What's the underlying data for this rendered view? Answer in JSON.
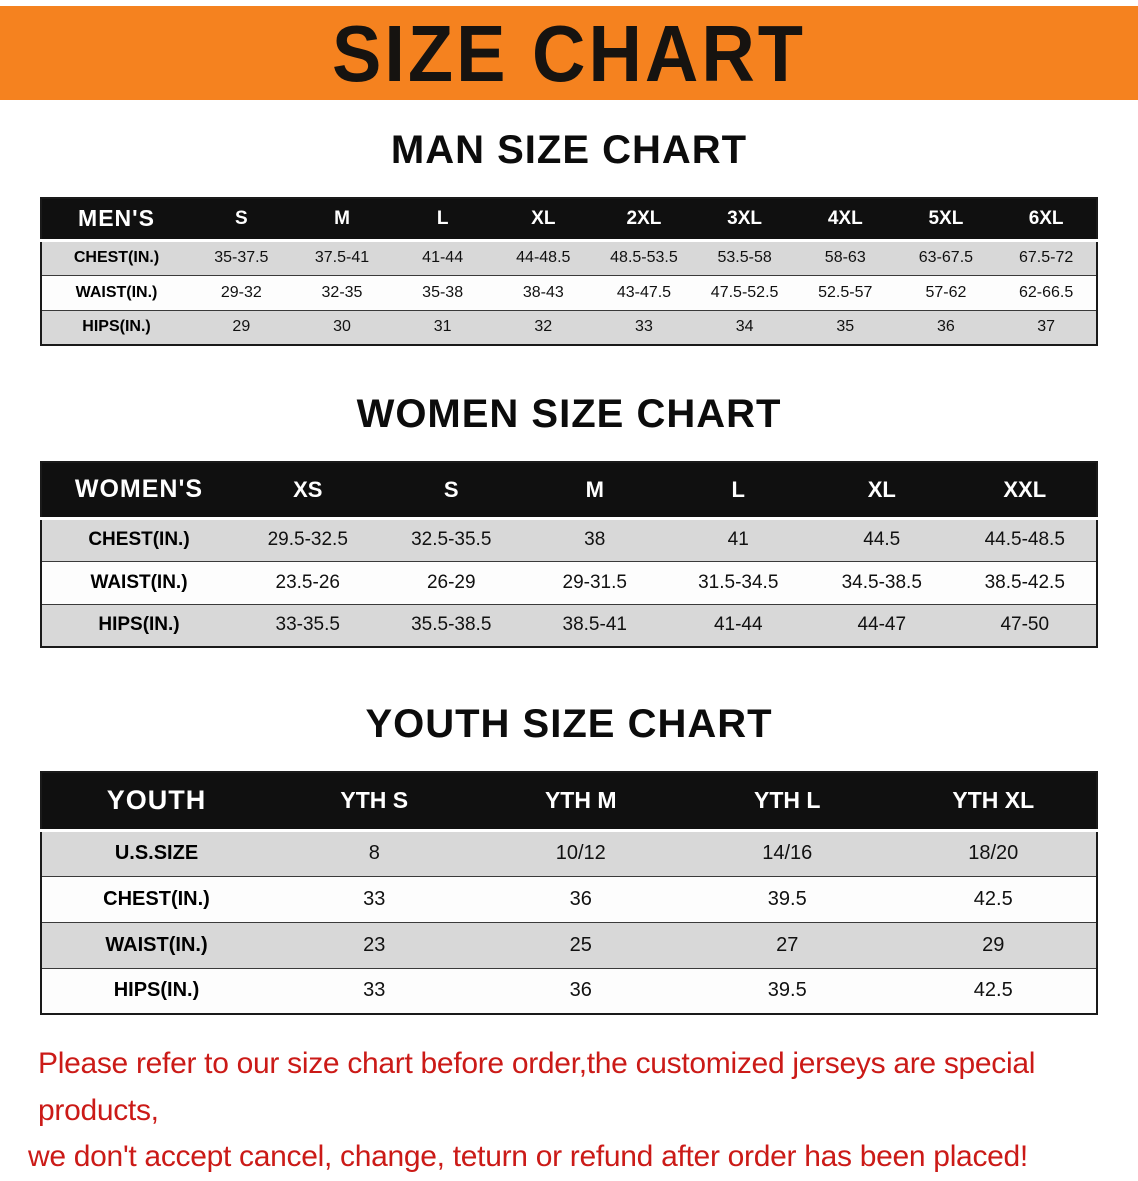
{
  "banner": {
    "title": "SIZE CHART"
  },
  "colors": {
    "banner_bg": "#F5821F",
    "table_header_bg": "#101010",
    "row_alternate": "#D8D8D8",
    "disclaimer_red": "#CB1A17"
  },
  "sections": [
    {
      "heading": "MAN SIZE CHART",
      "table": {
        "header": [
          "MEN'S",
          "S",
          "M",
          "L",
          "XL",
          "2XL",
          "3XL",
          "4XL",
          "5XL",
          "6XL"
        ],
        "rows": [
          [
            "CHEST(IN.)",
            "35-37.5",
            "37.5-41",
            "41-44",
            "44-48.5",
            "48.5-53.5",
            "53.5-58",
            "58-63",
            "63-67.5",
            "67.5-72"
          ],
          [
            "WAIST(IN.)",
            "29-32",
            "32-35",
            "35-38",
            "38-43",
            "43-47.5",
            "47.5-52.5",
            "52.5-57",
            "57-62",
            "62-66.5"
          ],
          [
            "HIPS(IN.)",
            "29",
            "30",
            "31",
            "32",
            "33",
            "34",
            "35",
            "36",
            "37"
          ]
        ]
      }
    },
    {
      "heading": "WOMEN SIZE CHART",
      "table": {
        "header": [
          "WOMEN'S",
          "XS",
          "S",
          "M",
          "L",
          "XL",
          "XXL"
        ],
        "rows": [
          [
            "CHEST(IN.)",
            "29.5-32.5",
            "32.5-35.5",
            "38",
            "41",
            "44.5",
            "44.5-48.5"
          ],
          [
            "WAIST(IN.)",
            "23.5-26",
            "26-29",
            "29-31.5",
            "31.5-34.5",
            "34.5-38.5",
            "38.5-42.5"
          ],
          [
            "HIPS(IN.)",
            "33-35.5",
            "35.5-38.5",
            "38.5-41",
            "41-44",
            "44-47",
            "47-50"
          ]
        ]
      }
    },
    {
      "heading": "YOUTH SIZE CHART",
      "table": {
        "header": [
          "YOUTH",
          "YTH S",
          "YTH M",
          "YTH L",
          "YTH XL"
        ],
        "rows": [
          [
            "U.S.SIZE",
            "8",
            "10/12",
            "14/16",
            "18/20"
          ],
          [
            "CHEST(IN.)",
            "33",
            "36",
            "39.5",
            "42.5"
          ],
          [
            "WAIST(IN.)",
            "23",
            "25",
            "27",
            "29"
          ],
          [
            "HIPS(IN.)",
            "33",
            "36",
            "39.5",
            "42.5"
          ]
        ]
      }
    }
  ],
  "footer": {
    "lines": [
      "Please refer to our size chart before order,the customized jerseys are special products,",
      "we don't accept cancel, change, teturn or refund after order has been placed!"
    ]
  }
}
